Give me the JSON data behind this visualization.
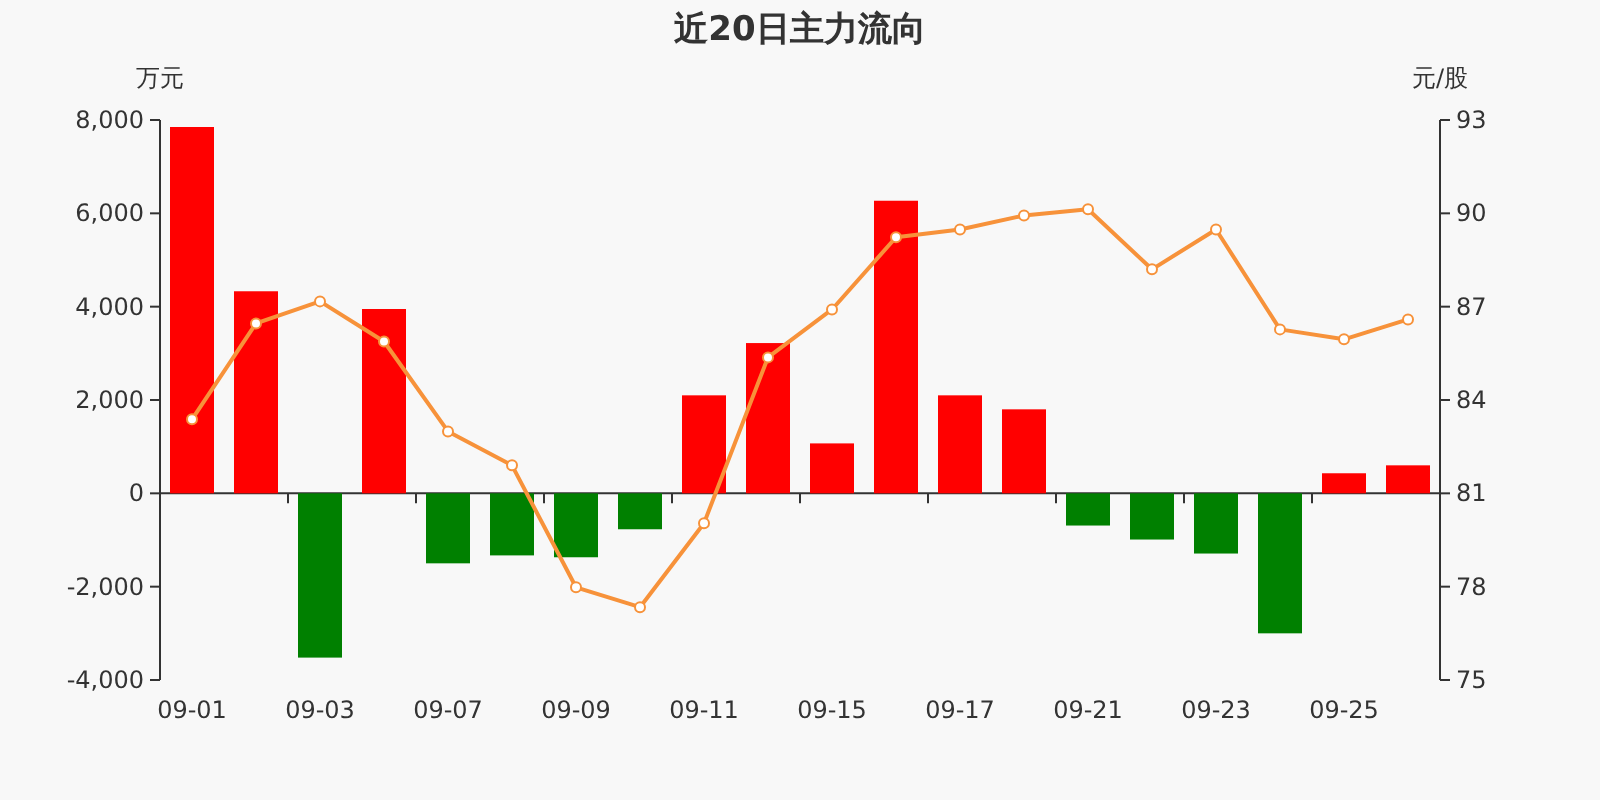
{
  "chart_data": {
    "type": "bar",
    "title": "近20日主力流向",
    "ylabel": "万元",
    "y2label": "元/股",
    "categories": [
      "09-01",
      null,
      "09-03",
      null,
      "09-07",
      null,
      "09-09",
      null,
      "09-11",
      null,
      "09-15",
      null,
      "09-17",
      null,
      "09-21",
      null,
      "09-23",
      null,
      "09-25",
      null
    ],
    "series": [
      {
        "values": [
          7850,
          4330,
          -3520,
          3950,
          -1500,
          -1330,
          -1370,
          -770,
          2100,
          3220,
          1070,
          6270,
          2100,
          1800,
          -690,
          -990,
          -1290,
          -3000,
          430,
          600
        ],
        "colors": [
          "#ff0000",
          "#ff0000",
          "#008000",
          "#ff0000",
          "#008000",
          "#008000",
          "#008000",
          "#008000",
          "#ff0000",
          "#ff0000",
          "#ff0000",
          "#ff0000",
          "#ff0000",
          "#ff0000",
          "#008000",
          "#008000",
          "#008000",
          "#008000",
          "#ff0000",
          "#ff0000"
        ]
      },
      {
        "type": "line",
        "axis": "y2",
        "color": "#f7923a",
        "marker": "circle",
        "values": [
          83.38,
          86.46,
          87.17,
          85.88,
          82.99,
          81.9,
          77.98,
          77.34,
          80.04,
          85.37,
          86.91,
          89.23,
          89.48,
          89.93,
          90.13,
          88.2,
          89.48,
          86.27,
          85.95,
          86.59
        ]
      }
    ],
    "ylim": [
      -4000,
      8000
    ],
    "yticks": [
      {
        "value": -4000,
        "label": "-4,000"
      },
      {
        "value": -2000,
        "label": "-2,000"
      },
      0,
      {
        "value": 2000,
        "label": "2,000"
      },
      {
        "value": 4000,
        "label": "4,000"
      },
      {
        "value": 6000,
        "label": "6,000"
      },
      {
        "value": 8000,
        "label": "8,000"
      }
    ],
    "y2lim": [
      75,
      93
    ],
    "y2ticks": [
      75,
      78,
      81,
      84,
      87,
      90,
      93
    ]
  }
}
